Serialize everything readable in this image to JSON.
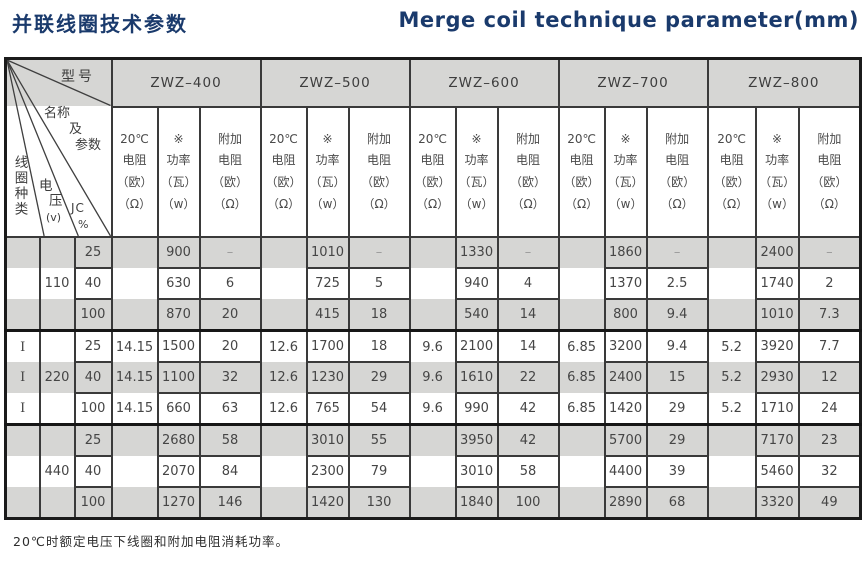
{
  "titles": {
    "cn": "并联线圈技术参数",
    "en": "Merge coil technique parameter(mm)"
  },
  "table": {
    "corner": {
      "model": "型号",
      "n1": "名称",
      "n2": "及",
      "n3": "参数",
      "coil_type": "线圈种类",
      "volt1": "电",
      "volt2": "压",
      "volt_unit": "(v)",
      "jc": "JC",
      "jc_unit": "%"
    },
    "models": [
      "ZWZ–400",
      "ZWZ–500",
      "ZWZ–600",
      "ZWZ–700",
      "ZWZ–800"
    ],
    "subheaders": [
      "20℃\n电阻\n（欧）\n（Ω）",
      "※\n功率\n（瓦）\n（w）",
      "附加\n电阻\n（欧）\n（Ω）"
    ],
    "rows": [
      {
        "coil_type": "",
        "voltage": "",
        "jc": "25",
        "cells": [
          "",
          "900",
          "–",
          "",
          "1010",
          "–",
          "",
          "1330",
          "–",
          "",
          "1860",
          "–",
          "",
          "2400",
          "–"
        ]
      },
      {
        "coil_type": "",
        "voltage": "110",
        "jc": "40",
        "cells": [
          "",
          "630",
          "6",
          "",
          "725",
          "5",
          "",
          "940",
          "4",
          "",
          "1370",
          "2.5",
          "",
          "1740",
          "2"
        ]
      },
      {
        "coil_type": "",
        "voltage": "",
        "jc": "100",
        "cells": [
          "",
          "870",
          "20",
          "",
          "415",
          "18",
          "",
          "540",
          "14",
          "",
          "800",
          "9.4",
          "",
          "1010",
          "7.3"
        ]
      },
      {
        "coil_type": "I",
        "voltage": "",
        "jc": "25",
        "cells": [
          "14.15",
          "1500",
          "20",
          "12.6",
          "1700",
          "18",
          "9.6",
          "2100",
          "14",
          "6.85",
          "3200",
          "9.4",
          "5.2",
          "3920",
          "7.7"
        ]
      },
      {
        "coil_type": "I",
        "voltage": "220",
        "jc": "40",
        "cells": [
          "14.15",
          "1100",
          "32",
          "12.6",
          "1230",
          "29",
          "9.6",
          "1610",
          "22",
          "6.85",
          "2400",
          "15",
          "5.2",
          "2930",
          "12"
        ]
      },
      {
        "coil_type": "I",
        "voltage": "",
        "jc": "100",
        "cells": [
          "14.15",
          "660",
          "63",
          "12.6",
          "765",
          "54",
          "9.6",
          "990",
          "42",
          "6.85",
          "1420",
          "29",
          "5.2",
          "1710",
          "24"
        ]
      },
      {
        "coil_type": "",
        "voltage": "",
        "jc": "25",
        "cells": [
          "",
          "2680",
          "58",
          "",
          "3010",
          "55",
          "",
          "3950",
          "42",
          "",
          "5700",
          "29",
          "",
          "7170",
          "23"
        ]
      },
      {
        "coil_type": "",
        "voltage": "440",
        "jc": "40",
        "cells": [
          "",
          "2070",
          "84",
          "",
          "2300",
          "79",
          "",
          "3010",
          "58",
          "",
          "4400",
          "39",
          "",
          "5460",
          "32"
        ]
      },
      {
        "coil_type": "",
        "voltage": "",
        "jc": "100",
        "cells": [
          "",
          "1270",
          "146",
          "",
          "1420",
          "130",
          "",
          "1840",
          "100",
          "",
          "2890",
          "68",
          "",
          "3320",
          "49"
        ]
      }
    ]
  },
  "footnote": "20℃时额定电压下线圈和附加电阻消耗功率。",
  "colors": {
    "title_navy": "#1a3a6c",
    "row_shade_gray": "#d6d6d4",
    "border_dark": "#3a3a3a"
  }
}
